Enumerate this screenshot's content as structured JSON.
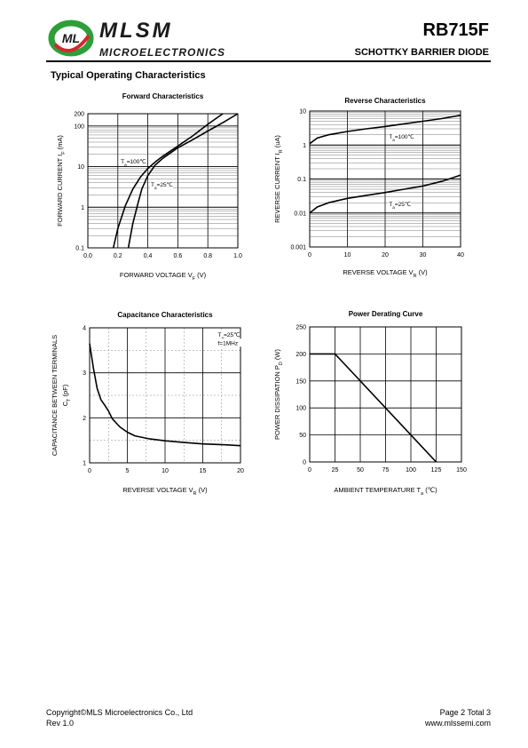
{
  "header": {
    "brand": "MLSM",
    "brand_sub": "MICROELECTRONICS",
    "logo_text": "ML",
    "part_number": "RB715F",
    "part_description": "SCHOTTKY BARRIER  DIODE"
  },
  "section_title": "Typical Operating Characteristics",
  "colors": {
    "brand_green": "#2e9e3a",
    "brand_red": "#d7262b",
    "curve": "#000000",
    "grid": "#000000"
  },
  "chart_data": [
    {
      "id": "forward",
      "type": "line",
      "title": "Forward  Characteristics",
      "xlabel": "FORWARD VOLTAGE  V",
      "xlabel_sub": "F",
      "xlabel_unit": " (V)",
      "ylabel": "FORWARD CURRENT   I",
      "ylabel_sub": "F",
      "ylabel_unit": " (mA)",
      "xlim": [
        0,
        1.0
      ],
      "ylim": [
        0.1,
        200
      ],
      "yscale": "log",
      "xticks": [
        "0.0",
        "0.2",
        "0.4",
        "0.6",
        "0.8",
        "1.0"
      ],
      "xtick_values": [
        0,
        0.2,
        0.4,
        0.6,
        0.8,
        1.0
      ],
      "yticks": [
        "0.1",
        "1",
        "10",
        "100",
        "200"
      ],
      "ytick_values": [
        0.1,
        1,
        10,
        100,
        200
      ],
      "series": [
        {
          "name": "T",
          "name_sub": "a",
          "name_suffix": "=100℃",
          "x": [
            0.17,
            0.2,
            0.25,
            0.3,
            0.35,
            0.4,
            0.45,
            0.5,
            0.6,
            0.7,
            0.8,
            0.9
          ],
          "y": [
            0.1,
            0.3,
            1.1,
            2.8,
            5.5,
            9,
            13,
            18,
            32,
            57,
            110,
            200
          ]
        },
        {
          "name": "T",
          "name_sub": "a",
          "name_suffix": "=25℃",
          "x": [
            0.27,
            0.3,
            0.33,
            0.36,
            0.4,
            0.45,
            0.5,
            0.6,
            0.7,
            0.8,
            0.9,
            1.0
          ],
          "y": [
            0.1,
            0.4,
            1.1,
            2.8,
            6,
            11,
            16,
            29,
            46,
            75,
            120,
            200
          ]
        }
      ],
      "annotations": [
        {
          "text": "T",
          "sub": "a",
          "suffix": "=100℃",
          "x": 0.22,
          "y": 12
        },
        {
          "text": "T",
          "sub": "a",
          "suffix": "=25℃",
          "x": 0.42,
          "y": 3.2
        }
      ],
      "grid": true
    },
    {
      "id": "reverse",
      "type": "line",
      "title": "Reverse  Characteristics",
      "xlabel": "REVERSE VOLTAGE    V",
      "xlabel_sub": "R",
      "xlabel_unit": " (V)",
      "ylabel": "REVERSE CURRENT   I",
      "ylabel_sub": "R",
      "ylabel_unit": "  (uA)",
      "xlim": [
        0,
        40
      ],
      "ylim": [
        0.001,
        10
      ],
      "yscale": "log",
      "xticks": [
        "0",
        "10",
        "20",
        "30",
        "40"
      ],
      "xtick_values": [
        0,
        10,
        20,
        30,
        40
      ],
      "yticks": [
        "0.001",
        "0.01",
        "0.1",
        "1",
        "10"
      ],
      "ytick_values": [
        0.001,
        0.01,
        0.1,
        1,
        10
      ],
      "series": [
        {
          "name": "T",
          "name_sub": "a",
          "name_suffix": "=100℃",
          "x": [
            0,
            2,
            5,
            10,
            15,
            20,
            25,
            30,
            35,
            40
          ],
          "y": [
            1.1,
            1.6,
            2.0,
            2.5,
            3.0,
            3.5,
            4.2,
            5.0,
            6.0,
            7.5
          ]
        },
        {
          "name": "T",
          "name_sub": "a",
          "name_suffix": "=25℃",
          "x": [
            0,
            2,
            5,
            10,
            15,
            20,
            25,
            30,
            35,
            40
          ],
          "y": [
            0.01,
            0.015,
            0.02,
            0.027,
            0.033,
            0.04,
            0.05,
            0.062,
            0.085,
            0.13
          ]
        }
      ],
      "annotations": [
        {
          "text": "T",
          "sub": "a",
          "suffix": "=100℃",
          "x": 21,
          "y": 1.55
        },
        {
          "text": "T",
          "sub": "a",
          "suffix": "=25℃",
          "x": 21,
          "y": 0.016
        }
      ],
      "grid": true
    },
    {
      "id": "capacitance",
      "type": "line",
      "title": "Capacitance Characteristics",
      "xlabel": "REVERSE VOLTAGE   V",
      "xlabel_sub": "R",
      "xlabel_unit": "  (V)",
      "ylabel": "CAPACITANCE BETWEEN TERMINALS",
      "ylabel2": "C",
      "ylabel2_sub": "T",
      "ylabel2_unit": " (pF)",
      "xlim": [
        0,
        20
      ],
      "ylim": [
        1,
        4
      ],
      "xticks": [
        "0",
        "5",
        "10",
        "15",
        "20"
      ],
      "xtick_values": [
        0,
        5,
        10,
        15,
        20
      ],
      "yticks": [
        "1",
        "2",
        "3",
        "4"
      ],
      "ytick_values": [
        1,
        2,
        3,
        4
      ],
      "series": [
        {
          "name": "",
          "x": [
            0,
            0.5,
            1,
            1.5,
            2,
            2.5,
            3,
            4,
            5,
            6,
            8,
            10,
            12,
            15,
            18,
            20
          ],
          "y": [
            3.65,
            3.1,
            2.65,
            2.4,
            2.28,
            2.15,
            1.98,
            1.8,
            1.68,
            1.6,
            1.53,
            1.49,
            1.46,
            1.42,
            1.4,
            1.38
          ]
        }
      ],
      "annotations": [
        {
          "text": "T",
          "sub": "a",
          "suffix": "=25℃",
          "x": 17,
          "y": 3.8
        },
        {
          "text": "f=1MHz",
          "sub": "",
          "suffix": "",
          "x": 17,
          "y": 3.62
        }
      ],
      "grid": true
    },
    {
      "id": "derating",
      "type": "line",
      "title": "Power Derating Curve",
      "xlabel": "AMBIENT TEMPERATURE      T",
      "xlabel_sub": "a",
      "xlabel_unit": "  (℃)",
      "ylabel": "POWER  DISSIPATION  P",
      "ylabel_sub": "D",
      "ylabel_unit": "  (W)",
      "xlim": [
        0,
        150
      ],
      "ylim": [
        0,
        250
      ],
      "xticks": [
        "0",
        "25",
        "50",
        "75",
        "100",
        "125",
        "150"
      ],
      "xtick_values": [
        0,
        25,
        50,
        75,
        100,
        125,
        150
      ],
      "yticks": [
        "0",
        "50",
        "100",
        "150",
        "200",
        "250"
      ],
      "ytick_values": [
        0,
        50,
        100,
        150,
        200,
        250
      ],
      "series": [
        {
          "name": "",
          "x": [
            0,
            25,
            125
          ],
          "y": [
            200,
            200,
            0
          ]
        }
      ],
      "annotations": [],
      "grid": true
    }
  ],
  "footer": {
    "copyright": "Copyright©MLS Microelectronics Co., Ltd",
    "rev": "Rev 1.0",
    "page": "Page 2 Total 3",
    "website": "www.mlssemi.com"
  }
}
